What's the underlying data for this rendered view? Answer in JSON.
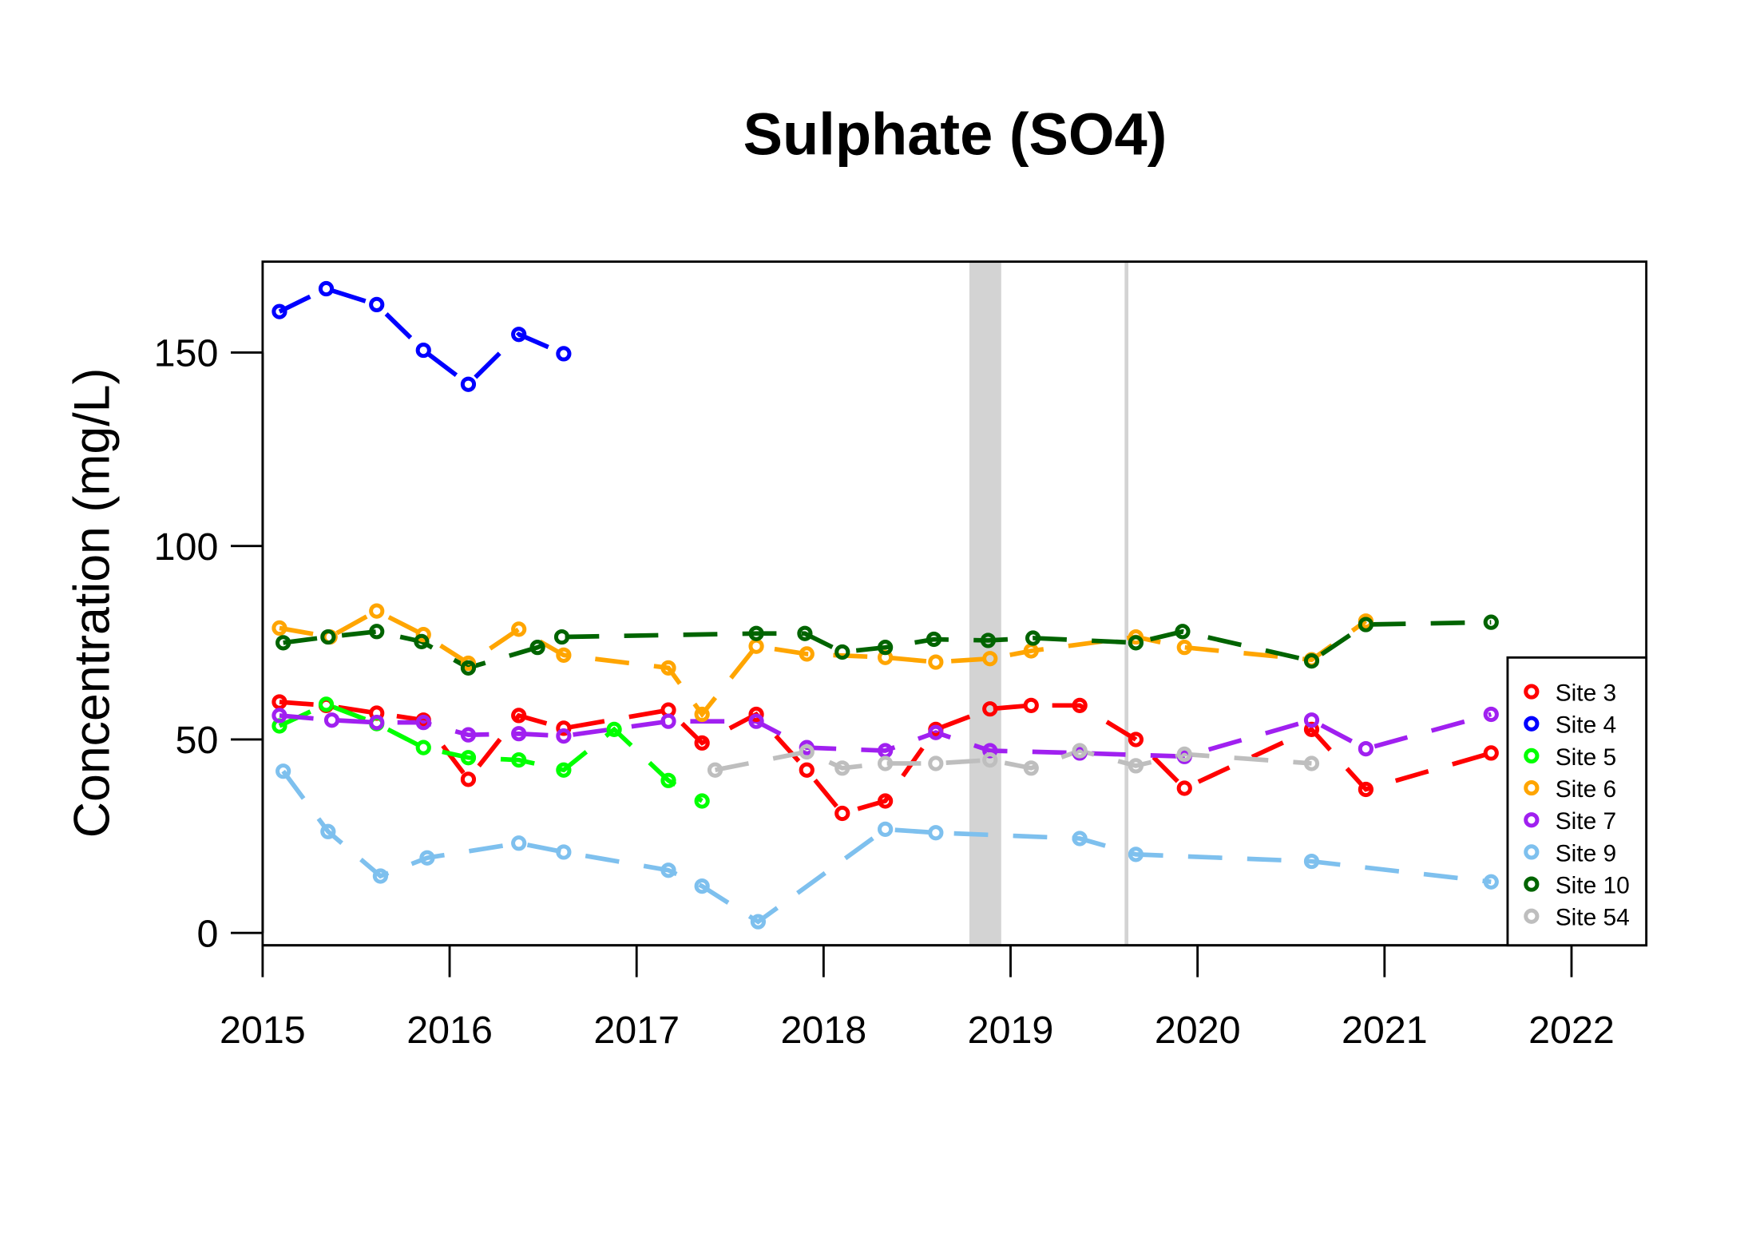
{
  "chart_data": {
    "type": "line",
    "title": "Sulphate (SO4)",
    "xlabel": "",
    "ylabel": "Concentration (mg/L)",
    "xlim": [
      2015,
      2022.4
    ],
    "ylim": [
      -3.2,
      173.5
    ],
    "x_ticks": [
      2015,
      2016,
      2017,
      2018,
      2019,
      2020,
      2021,
      2022
    ],
    "x_tick_labels": [
      "2015",
      "2016",
      "2017",
      "2018",
      "2019",
      "2020",
      "2021",
      "2022"
    ],
    "y_ticks": [
      0,
      50,
      100,
      150
    ],
    "y_tick_labels": [
      "0",
      "50",
      "100",
      "150"
    ],
    "grid": false,
    "legend_position": "bottom-right",
    "shaded_periods": [
      {
        "from": 2018.78,
        "to": 2018.95,
        "color": "#D3D3D3"
      },
      {
        "from": 2019.61,
        "to": 2019.63,
        "color": "#D3D3D3"
      }
    ],
    "series": [
      {
        "name": "Site 3",
        "color": "#FF0000",
        "x": [
          2015.09,
          2015.34,
          2015.61,
          2015.86,
          2016.1,
          2016.37,
          2016.61,
          2017.17,
          2017.35,
          2017.64,
          2017.91,
          2018.1,
          2018.33,
          2018.6,
          2018.89,
          2019.11,
          2019.37,
          2019.67,
          2019.93,
          2020.61,
          2020.9,
          2021.57
        ],
        "y": [
          59.7,
          58.8,
          56.8,
          55.0,
          39.7,
          56.2,
          52.9,
          57.6,
          49.1,
          56.5,
          42.1,
          30.9,
          34.1,
          52.6,
          57.9,
          58.8,
          58.8,
          50.0,
          37.4,
          52.6,
          37.1,
          46.5
        ]
      },
      {
        "name": "Site 4",
        "color": "#0000FF",
        "x": [
          2015.09,
          2015.34,
          2015.61,
          2015.86,
          2016.1,
          2016.37,
          2016.61
        ],
        "y": [
          160.6,
          166.5,
          162.4,
          150.6,
          141.8,
          154.7,
          149.7
        ]
      },
      {
        "name": "Site 5",
        "color": "#00FF00",
        "x": [
          2015.09,
          2015.34,
          2015.61,
          2015.86,
          2016.1,
          2016.37,
          2016.61,
          2016.88,
          2017.17,
          2017.35
        ],
        "y": [
          53.5,
          59.1,
          54.1,
          47.9,
          45.3,
          44.7,
          42.1,
          52.6,
          39.4,
          34.1
        ]
      },
      {
        "name": "Site 6",
        "color": "#FFA500",
        "x": [
          2015.09,
          2015.36,
          2015.61,
          2015.86,
          2016.1,
          2016.37,
          2016.61,
          2017.17,
          2017.35,
          2017.64,
          2017.91,
          2018.33,
          2018.6,
          2018.89,
          2019.11,
          2019.67,
          2019.93,
          2020.61,
          2020.9
        ],
        "y": [
          78.8,
          76.5,
          83.2,
          77.1,
          69.7,
          78.5,
          71.8,
          68.5,
          56.5,
          74.1,
          72.1,
          71.2,
          70.0,
          70.9,
          72.9,
          76.5,
          73.8,
          70.6,
          80.6
        ]
      },
      {
        "name": "Site 7",
        "color": "#A020F0",
        "x": [
          2015.09,
          2015.37,
          2015.61,
          2015.86,
          2016.1,
          2016.37,
          2016.61,
          2017.17,
          2017.64,
          2017.91,
          2018.33,
          2018.6,
          2018.89,
          2019.37,
          2019.93,
          2020.61,
          2020.9,
          2021.57
        ],
        "y": [
          56.2,
          55.0,
          54.4,
          54.4,
          51.2,
          51.5,
          50.9,
          54.7,
          54.7,
          47.9,
          47.1,
          51.8,
          47.1,
          46.5,
          45.6,
          55.0,
          47.6,
          56.5
        ]
      },
      {
        "name": "Site 9",
        "color": "#7EC0EE",
        "x": [
          2015.11,
          2015.35,
          2015.63,
          2015.88,
          2016.37,
          2016.61,
          2017.17,
          2017.35,
          2017.65,
          2018.33,
          2018.6,
          2019.37,
          2019.67,
          2020.61,
          2021.57
        ],
        "y": [
          41.8,
          26.2,
          14.7,
          19.4,
          23.2,
          20.9,
          16.2,
          12.1,
          2.9,
          26.8,
          25.9,
          24.4,
          20.3,
          18.5,
          13.2
        ]
      },
      {
        "name": "Site 10",
        "color": "#006400",
        "x": [
          2015.11,
          2015.35,
          2015.61,
          2015.85,
          2016.1,
          2016.47,
          2016.6,
          2017.64,
          2017.9,
          2018.1,
          2018.33,
          2018.59,
          2018.88,
          2019.12,
          2019.67,
          2019.92,
          2020.61,
          2020.9,
          2021.57
        ],
        "y": [
          75.0,
          76.5,
          77.9,
          75.3,
          68.5,
          73.8,
          76.5,
          77.4,
          77.4,
          72.6,
          73.8,
          75.9,
          75.6,
          76.2,
          75.0,
          77.9,
          70.3,
          79.7,
          80.3
        ]
      },
      {
        "name": "Site 54",
        "color": "#BEBEBE",
        "x": [
          2017.42,
          2017.91,
          2018.1,
          2018.33,
          2018.6,
          2018.89,
          2019.11,
          2019.37,
          2019.67,
          2019.93,
          2020.61
        ],
        "y": [
          42.1,
          46.8,
          42.6,
          43.8,
          43.8,
          44.7,
          42.6,
          47.1,
          43.2,
          46.2,
          43.8
        ]
      }
    ]
  }
}
